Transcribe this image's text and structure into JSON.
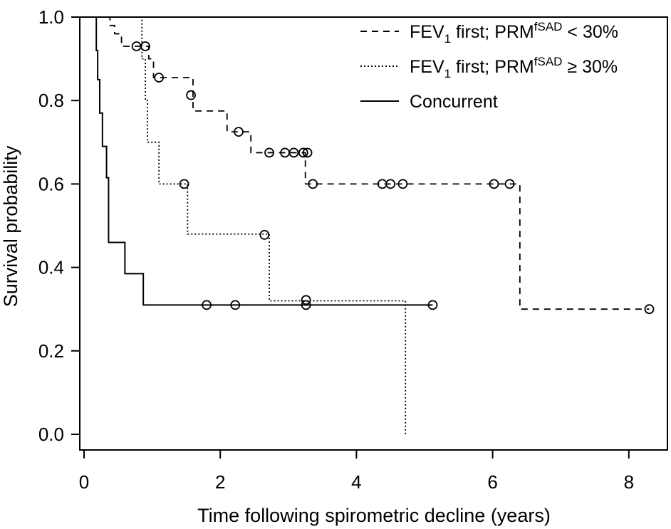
{
  "chart_data": {
    "type": "line",
    "subtype": "kaplan-meier step curves",
    "xlabel": "Time following spirometric decline (years)",
    "ylabel": "Survival probability",
    "xlim": [
      0,
      8.5
    ],
    "ylim": [
      0.0,
      1.0
    ],
    "x_ticks": [
      "0",
      "2",
      "4",
      "6",
      "8"
    ],
    "y_ticks": [
      "0.0",
      "0.2",
      "0.4",
      "0.6",
      "0.8",
      "1.0"
    ],
    "grid": false,
    "legend_position": "top-right",
    "series": [
      {
        "name": "FEV1 first; PRMfSAD < 30%",
        "legend": {
          "base": "FEV",
          "sub": "1",
          "mid": " first; PRM",
          "sup": "fSAD",
          "tail": " < 30%"
        },
        "line_style": "dashed",
        "steps": [
          [
            0.0,
            1.0
          ],
          [
            0.38,
            0.98
          ],
          [
            0.45,
            0.96
          ],
          [
            0.55,
            0.93
          ],
          [
            0.95,
            0.9
          ],
          [
            1.02,
            0.855
          ],
          [
            1.6,
            0.775
          ],
          [
            2.1,
            0.725
          ],
          [
            2.45,
            0.675
          ],
          [
            3.25,
            0.6
          ],
          [
            6.4,
            0.3
          ],
          [
            8.3,
            0.3
          ]
        ],
        "censored": [
          [
            0.77,
            0.93
          ],
          [
            0.9,
            0.93
          ],
          [
            1.1,
            0.855
          ],
          [
            1.57,
            0.813
          ],
          [
            2.27,
            0.725
          ],
          [
            2.72,
            0.675
          ],
          [
            2.95,
            0.675
          ],
          [
            3.08,
            0.675
          ],
          [
            3.22,
            0.675
          ],
          [
            3.28,
            0.675
          ],
          [
            3.36,
            0.6
          ],
          [
            4.38,
            0.6
          ],
          [
            4.5,
            0.6
          ],
          [
            4.68,
            0.6
          ],
          [
            6.02,
            0.6
          ],
          [
            6.25,
            0.6
          ],
          [
            8.3,
            0.3
          ]
        ]
      },
      {
        "name": "FEV1 first; PRMfSAD ≥ 30%",
        "legend": {
          "base": "FEV",
          "sub": "1",
          "mid": " first; PRM",
          "sup": "fSAD",
          "tail": " ≥ 30%"
        },
        "line_style": "dotted",
        "steps": [
          [
            0.0,
            1.0
          ],
          [
            0.85,
            0.9
          ],
          [
            0.9,
            0.8
          ],
          [
            0.93,
            0.7
          ],
          [
            1.1,
            0.6
          ],
          [
            1.52,
            0.48
          ],
          [
            2.72,
            0.32
          ],
          [
            4.72,
            0.0
          ]
        ],
        "censored": [
          [
            1.47,
            0.6
          ],
          [
            2.65,
            0.478
          ],
          [
            3.26,
            0.322
          ]
        ]
      },
      {
        "name": "Concurrent",
        "legend": {
          "base": "Concurrent",
          "sub": "",
          "mid": "",
          "sup": "",
          "tail": ""
        },
        "line_style": "solid",
        "steps": [
          [
            0.0,
            1.0
          ],
          [
            0.18,
            0.92
          ],
          [
            0.2,
            0.85
          ],
          [
            0.23,
            0.77
          ],
          [
            0.27,
            0.69
          ],
          [
            0.33,
            0.615
          ],
          [
            0.36,
            0.46
          ],
          [
            0.6,
            0.385
          ],
          [
            0.87,
            0.31
          ],
          [
            5.12,
            0.31
          ]
        ],
        "censored": [
          [
            1.8,
            0.31
          ],
          [
            2.22,
            0.31
          ],
          [
            3.26,
            0.31
          ],
          [
            5.12,
            0.31
          ]
        ]
      }
    ]
  }
}
